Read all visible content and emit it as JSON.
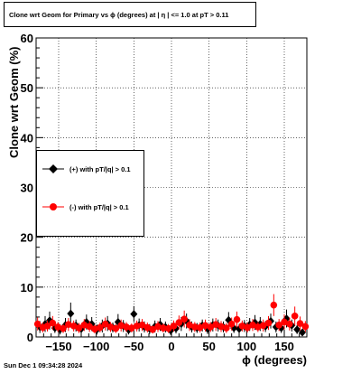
{
  "chart_data": {
    "type": "scatter",
    "title": "Clone wrt Geom for Primary vs ϕ (degrees) at | η | <= 1.0 at pT > 0.11",
    "xlabel": "ϕ (degrees)",
    "ylabel": "Clone wrt Geom (%)",
    "xlim": [
      -180,
      180
    ],
    "ylim": [
      0,
      60
    ],
    "xticks": [
      -150,
      -100,
      -50,
      0,
      50,
      100,
      150
    ],
    "xtick_labels": [
      "−150",
      "−100",
      "−50",
      "0",
      "50",
      "100",
      "150"
    ],
    "yticks": [
      0,
      10,
      20,
      30,
      40,
      50,
      60
    ],
    "ytick_labels": [
      "0",
      "10",
      "20",
      "30",
      "40",
      "50",
      "60"
    ],
    "grid": true,
    "legend_position": "left-middle",
    "series": [
      {
        "name": "(+) with pT/|q| > 0.1",
        "color": "#000000",
        "marker": "diamond",
        "x": [
          -175,
          -168,
          -162,
          -155,
          -148,
          -141,
          -134,
          -127,
          -120,
          -113,
          -106,
          -99,
          -92,
          -85,
          -78,
          -71,
          -64,
          -57,
          -50,
          -43,
          -36,
          -29,
          -22,
          -15,
          -8,
          -1,
          6,
          13,
          20,
          27,
          34,
          41,
          48,
          55,
          62,
          69,
          76,
          83,
          90,
          97,
          104,
          111,
          118,
          125,
          132,
          139,
          146,
          153,
          160,
          167,
          174
        ],
        "y": [
          2.0,
          2.6,
          3.3,
          1.8,
          1.5,
          2.4,
          4.7,
          2.3,
          1.6,
          3.0,
          2.6,
          1.5,
          2.2,
          2.7,
          1.9,
          3.0,
          2.2,
          1.4,
          4.6,
          2.4,
          2.0,
          1.6,
          2.1,
          2.5,
          2.0,
          1.3,
          1.7,
          2.6,
          3.2,
          2.0,
          1.8,
          2.3,
          1.6,
          2.4,
          2.3,
          2.0,
          3.4,
          1.8,
          1.6,
          2.2,
          2.5,
          2.9,
          2.6,
          2.1,
          3.2,
          2.0,
          1.8,
          3.7,
          2.3,
          1.5,
          0.9
        ],
        "err": [
          1.2,
          1.6,
          1.8,
          1.0,
          1.0,
          1.4,
          2.2,
          1.2,
          1.0,
          1.5,
          1.4,
          1.0,
          1.3,
          1.5,
          1.0,
          1.6,
          1.2,
          0.9,
          1.6,
          1.3,
          1.1,
          1.0,
          1.2,
          1.3,
          1.1,
          0.9,
          1.0,
          1.4,
          1.5,
          1.1,
          1.0,
          1.2,
          1.0,
          1.3,
          1.2,
          1.1,
          1.6,
          1.0,
          1.0,
          1.2,
          1.3,
          1.5,
          1.4,
          1.1,
          1.5,
          1.1,
          1.0,
          1.8,
          1.2,
          0.9,
          0.7
        ]
      },
      {
        "name": "(-) with pT/|q| > 0.1",
        "color": "#ff0000",
        "marker": "circle",
        "x": [
          -178,
          -171,
          -165,
          -158,
          -151,
          -144,
          -137,
          -130,
          -123,
          -116,
          -109,
          -102,
          -95,
          -88,
          -81,
          -74,
          -67,
          -60,
          -53,
          -46,
          -39,
          -32,
          -25,
          -18,
          -11,
          -4,
          3,
          10,
          17,
          24,
          31,
          38,
          45,
          52,
          59,
          66,
          73,
          80,
          87,
          94,
          101,
          108,
          115,
          122,
          129,
          136,
          143,
          150,
          157,
          164,
          171,
          178
        ],
        "y": [
          2.6,
          1.9,
          2.2,
          2.8,
          2.0,
          1.7,
          2.5,
          2.2,
          1.8,
          2.4,
          2.1,
          1.6,
          1.9,
          2.6,
          2.0,
          1.7,
          2.3,
          2.0,
          1.8,
          2.2,
          2.4,
          1.9,
          1.5,
          2.1,
          1.8,
          1.7,
          2.2,
          2.9,
          3.6,
          2.4,
          2.0,
          1.9,
          2.3,
          2.0,
          2.5,
          2.1,
          1.8,
          2.6,
          3.5,
          2.2,
          1.9,
          2.4,
          2.0,
          2.3,
          2.8,
          6.4,
          2.4,
          3.0,
          2.6,
          4.2,
          2.7,
          2.1
        ],
        "err": [
          1.3,
          1.0,
          1.1,
          1.4,
          1.0,
          0.9,
          1.3,
          1.1,
          1.0,
          1.2,
          1.1,
          0.9,
          1.0,
          1.3,
          1.0,
          0.9,
          1.2,
          1.0,
          0.9,
          1.1,
          1.2,
          1.0,
          0.8,
          1.1,
          0.9,
          0.9,
          1.1,
          1.4,
          1.7,
          1.2,
          1.0,
          1.0,
          1.2,
          1.0,
          1.3,
          1.1,
          1.0,
          1.3,
          1.6,
          1.1,
          1.0,
          1.2,
          1.0,
          1.2,
          1.4,
          2.2,
          1.2,
          1.5,
          1.3,
          1.9,
          1.4,
          1.1
        ]
      }
    ]
  },
  "footer_timestamp": "Sun Dec  1 09:34:28 2024"
}
